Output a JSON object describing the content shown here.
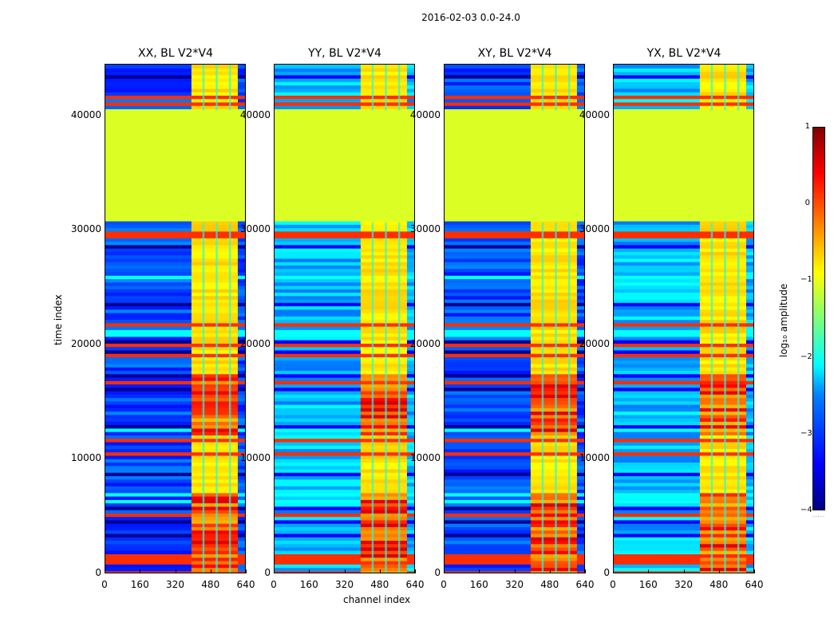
{
  "chart_data": {
    "type": "heatmap",
    "suptitle": "2016-02-03 0.0-24.0",
    "xlabel": "channel index",
    "ylabel": "time index",
    "xlim": [
      0,
      640
    ],
    "ylim": [
      0,
      44500
    ],
    "xticks": [
      "0",
      "160",
      "320",
      "480",
      "640"
    ],
    "yticks": [
      "0",
      "10000",
      "20000",
      "30000",
      "40000"
    ],
    "panels": [
      {
        "title": "XX, BL V2*V4",
        "type": "cross-hatch"
      },
      {
        "title": "YY, BL V2*V4",
        "type": "auto"
      },
      {
        "title": "XY, BL V2*V4",
        "type": "cross-hatch"
      },
      {
        "title": "YX, BL V2*V4",
        "type": "auto"
      }
    ],
    "colorbar": {
      "label": "log₁₀ amplitude",
      "range": [
        -4,
        1
      ],
      "ticks": [
        "1",
        "0",
        "−1",
        "−2",
        "−3",
        "−4"
      ],
      "dots": "....."
    },
    "flagged_block": {
      "t_start": 30700,
      "t_end": 40500,
      "value": -1
    },
    "bright_channel_range": [
      390,
      600
    ]
  }
}
